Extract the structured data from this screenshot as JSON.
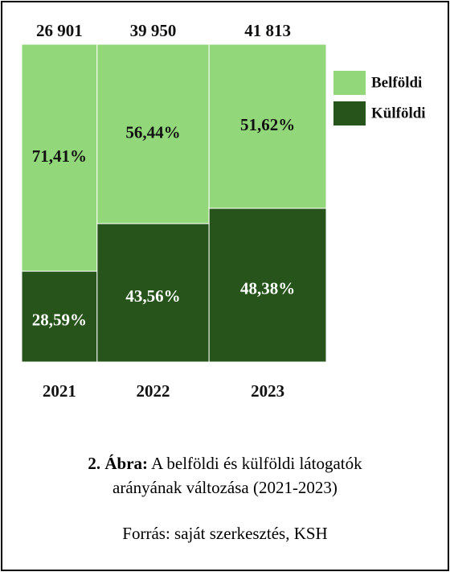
{
  "chart_data": {
    "type": "marimekko",
    "categories": [
      "2021",
      "2022",
      "2023"
    ],
    "totals": {
      "values": [
        26901,
        39950,
        41813
      ],
      "value_labels": [
        "26 901",
        "39 950",
        "41 813"
      ]
    },
    "series": [
      {
        "name": "Belföldi",
        "color": "#92d87a",
        "values": [
          71.41,
          56.44,
          51.62
        ],
        "value_labels": [
          "71,41%",
          "56,44%",
          "51,62%"
        ]
      },
      {
        "name": "Külföldi",
        "color": "#26541b",
        "values": [
          28.59,
          43.56,
          48.38
        ],
        "value_labels": [
          "28,59%",
          "43,56%",
          "48,38%"
        ]
      }
    ],
    "ylim": [
      0,
      100
    ]
  },
  "caption": {
    "label": "2. Ábra:",
    "text": "A belföldi és külföldi látogatók",
    "text2": "arányának változása (2021-2023)"
  },
  "source": "Forrás: saját szerkesztés, KSH"
}
